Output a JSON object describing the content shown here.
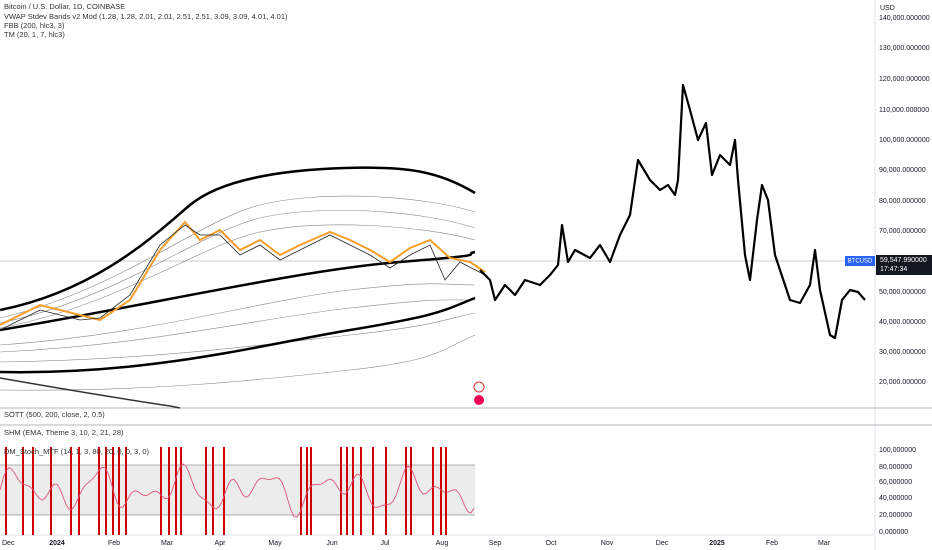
{
  "header": {
    "symbol": "Bitcoin / U.S. Dollar, 1D, COINBASE",
    "indicators": [
      "VWAP Stdev Bands v2 Mod (1.28, 1.28, 2.01, 2.01, 2.51, 2.51, 3.09, 3.09, 4.01, 4.01)",
      "FBB (200, hlc3, 3)",
      "TM (20, 1, 7, hlc3)"
    ]
  },
  "price_axis": {
    "currency": "USD",
    "labels": [
      "140,000.000000",
      "130,000.000000",
      "120,000.000000",
      "110,000.000000",
      "100,000.000000",
      "90,000.000000",
      "80,000.000000",
      "70,000.000000",
      "50,000.000000",
      "40,000.000000",
      "30,000.000000",
      "20,000.000000"
    ]
  },
  "price_tag": {
    "symbol": "BTCUSD",
    "price": "59,547.990000",
    "countdown": "17:47:34"
  },
  "panes": [
    "SOTT (500, 200, close, 2, 0.5)",
    "SHM (EMA, Theme 3, 10, 2, 21, 28)",
    "DM_Stoch_MTF (14, 1, 3, 80, 20, 0, 0, 3, 0)"
  ],
  "osc_axis": {
    "labels": [
      "100,000000",
      "80,000000",
      "60,000000",
      "40,000000",
      "20,000000",
      "0,000000"
    ]
  },
  "time_axis": {
    "labels": [
      "Dec",
      "2024",
      "Feb",
      "Mar",
      "Apr",
      "May",
      "Jun",
      "Jul",
      "Aug",
      "Sep",
      "Oct",
      "Nov",
      "Dec",
      "2025",
      "Feb",
      "Mar"
    ]
  }
}
